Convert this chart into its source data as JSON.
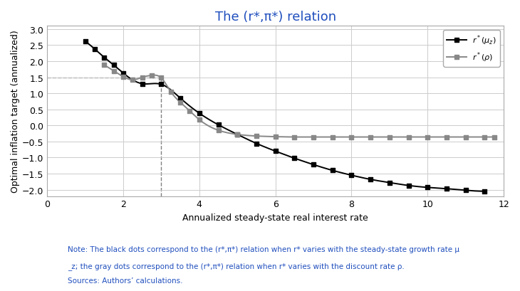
{
  "title": "The (r*,π*) relation",
  "xlabel": "Annualized steady-state real interest rate",
  "ylabel": "Optimal inflation target (annualized)",
  "xlim": [
    0,
    12
  ],
  "ylim": [
    -2.2,
    3.1
  ],
  "xticks": [
    0,
    2,
    4,
    6,
    8,
    10,
    12
  ],
  "yticks": [
    -2,
    -1.5,
    -1,
    -0.5,
    0,
    0.5,
    1,
    1.5,
    2,
    2.5,
    3
  ],
  "dashed_x": 3.0,
  "dashed_y": 1.5,
  "black_x": [
    1.0,
    1.25,
    1.5,
    1.75,
    2.0,
    2.5,
    3.0,
    3.5,
    4.0,
    4.5,
    5.0,
    5.5,
    6.0,
    6.5,
    7.0,
    7.5,
    8.0,
    8.5,
    9.0,
    9.5,
    10.0,
    10.5,
    11.0,
    11.5
  ],
  "black_y": [
    2.62,
    2.38,
    2.12,
    1.88,
    1.63,
    1.3,
    1.28,
    0.85,
    0.38,
    0.02,
    -0.28,
    -0.56,
    -0.8,
    -1.02,
    -1.22,
    -1.4,
    -1.55,
    -1.68,
    -1.78,
    -1.87,
    -1.93,
    -1.97,
    -2.02,
    -2.05
  ],
  "gray_x": [
    1.5,
    1.75,
    2.0,
    2.25,
    2.5,
    2.75,
    3.0,
    3.25,
    3.5,
    3.75,
    4.0,
    4.5,
    5.0,
    5.5,
    6.0,
    6.5,
    7.0,
    7.5,
    8.0,
    8.5,
    9.0,
    9.5,
    10.0,
    10.5,
    11.0,
    11.5,
    11.75
  ],
  "gray_y": [
    1.88,
    1.7,
    1.52,
    1.42,
    1.5,
    1.56,
    1.48,
    1.05,
    0.72,
    0.45,
    0.18,
    -0.15,
    -0.28,
    -0.33,
    -0.35,
    -0.36,
    -0.36,
    -0.36,
    -0.36,
    -0.36,
    -0.36,
    -0.36,
    -0.36,
    -0.36,
    -0.36,
    -0.36,
    -0.36
  ],
  "black_color": "#000000",
  "gray_color": "#888888",
  "title_color": "#1F4EBD",
  "note_color": "#1F4EBD",
  "note_line1": "Note: The black dots correspond to the (r*,π*) relation when r* varies with the steady-state growth rate μ",
  "note_line2": "_z; the gray dots correspond to the (r*,π*) relation when r* varies with the discount rate ρ.",
  "note_line3": "Sources: Authors’ calculations.",
  "legend_label_black": "$r^*(\\mu_z)$",
  "legend_label_gray": "$r^*(\\rho)$",
  "background_color": "#ffffff",
  "grid_color": "#cccccc"
}
